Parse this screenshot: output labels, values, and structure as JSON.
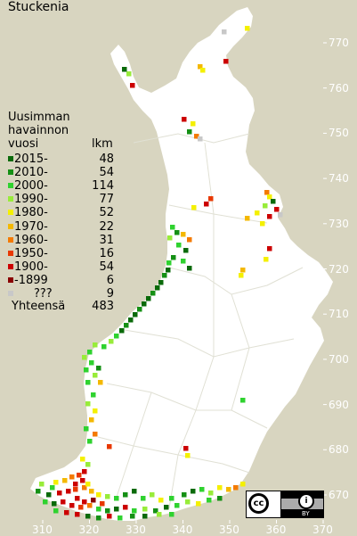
{
  "title": "Stuckenia",
  "legend": {
    "heading_lines": [
      "Uusimman",
      "havainnon",
      "vuosi"
    ],
    "count_header": "lkm",
    "rows": [
      {
        "label": "2015-",
        "count": "48",
        "color": "#0a6a0a"
      },
      {
        "label": "2010-",
        "count": "54",
        "color": "#159015"
      },
      {
        "label": "2000-",
        "count": "114",
        "color": "#2fd22f"
      },
      {
        "label": "1990-",
        "count": "77",
        "color": "#98ec3a"
      },
      {
        "label": "1980-",
        "count": "52",
        "color": "#f4f000"
      },
      {
        "label": "1970-",
        "count": "22",
        "color": "#f4b800"
      },
      {
        "label": "1960-",
        "count": "31",
        "color": "#f47a00"
      },
      {
        "label": "1950-",
        "count": "16",
        "color": "#e83800"
      },
      {
        "label": "1900-",
        "count": "54",
        "color": "#cc0000"
      },
      {
        "label": "-1899",
        "count": "6",
        "color": "#8a0000"
      },
      {
        "label": "???",
        "count": "9",
        "color": "#c8c8c8"
      }
    ],
    "total_label": "Yhteensä",
    "total_count": "483"
  },
  "axes": {
    "x_ticks": [
      "310",
      "320",
      "330",
      "340",
      "350",
      "360",
      "370"
    ],
    "y_ticks": [
      "770",
      "760",
      "750",
      "740",
      "730",
      "720",
      "710",
      "700",
      "690",
      "680",
      "670"
    ]
  },
  "license": {
    "cc": "cc",
    "by": "BY"
  },
  "colors": {
    "background": "#d8d5c0",
    "land": "#ffffff",
    "borders": "#e4e4d8"
  }
}
